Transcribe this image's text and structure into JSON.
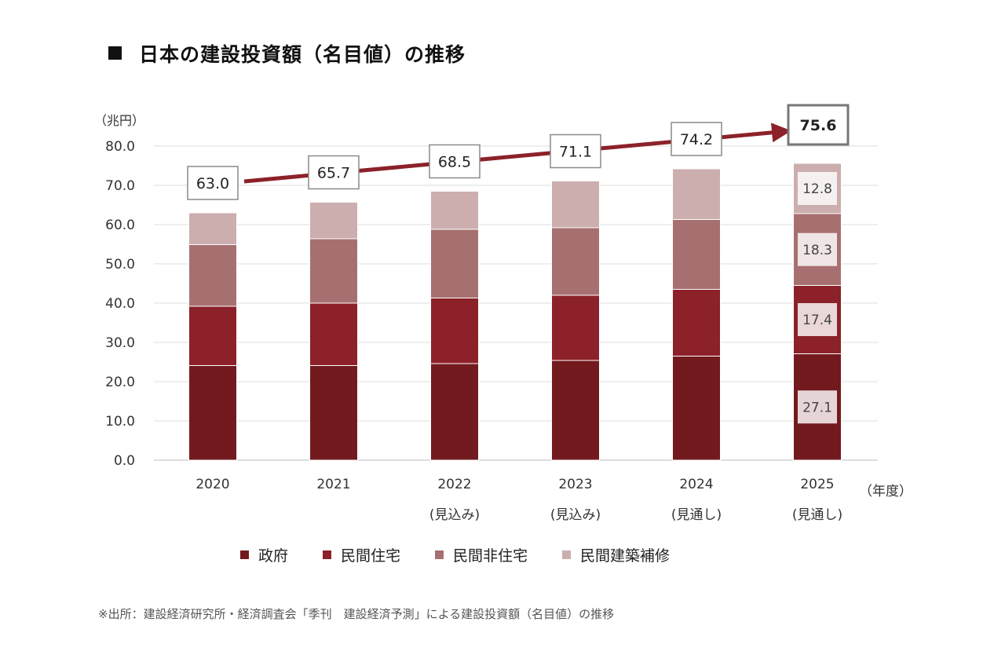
{
  "title": "日本の建設投資額（名目値）の推移",
  "source": "※出所：建設経済研究所・経済調査会「季刊　建設経済予測」による建設投資額（名目値）の推移",
  "colors": {
    "政府": "#731a1f",
    "民間住宅": "#8c2129",
    "民間非住宅": "#a77070",
    "民間建築補修": "#ccaeae",
    "arrow": "#8c2129"
  },
  "chart_data": {
    "type": "bar",
    "stacked": true,
    "y_unit": "（兆円）",
    "x_unit": "（年度）",
    "ylim": [
      0,
      80
    ],
    "yticks": [
      "0.0",
      "10.0",
      "20.0",
      "30.0",
      "40.0",
      "50.0",
      "60.0",
      "70.0",
      "80.0"
    ],
    "grid": true,
    "legend_position": "bottom",
    "categories": [
      "2020",
      "2021",
      "2022",
      "2023",
      "2024",
      "2025"
    ],
    "category_sublabels": [
      "",
      "",
      "(見込み)",
      "(見込み)",
      "(見通し)",
      "(見通し)"
    ],
    "series": [
      {
        "name": "政府",
        "values": [
          24.1,
          24.1,
          24.6,
          25.4,
          26.5,
          27.1
        ]
      },
      {
        "name": "民間住宅",
        "values": [
          15.1,
          15.9,
          16.7,
          16.6,
          17.0,
          17.4
        ]
      },
      {
        "name": "民間非住宅",
        "values": [
          15.7,
          16.4,
          17.5,
          17.2,
          17.8,
          18.3
        ]
      },
      {
        "name": "民間建築補修",
        "values": [
          8.1,
          9.3,
          9.7,
          11.9,
          12.9,
          12.8
        ]
      }
    ],
    "totals": [
      63.0,
      65.7,
      68.5,
      71.1,
      74.2,
      75.6
    ],
    "total_labels": [
      "63.0",
      "65.7",
      "68.5",
      "71.1",
      "74.2",
      "75.6"
    ],
    "segment_labels_2025": [
      "27.1",
      "17.4",
      "18.3",
      "12.8"
    ]
  }
}
